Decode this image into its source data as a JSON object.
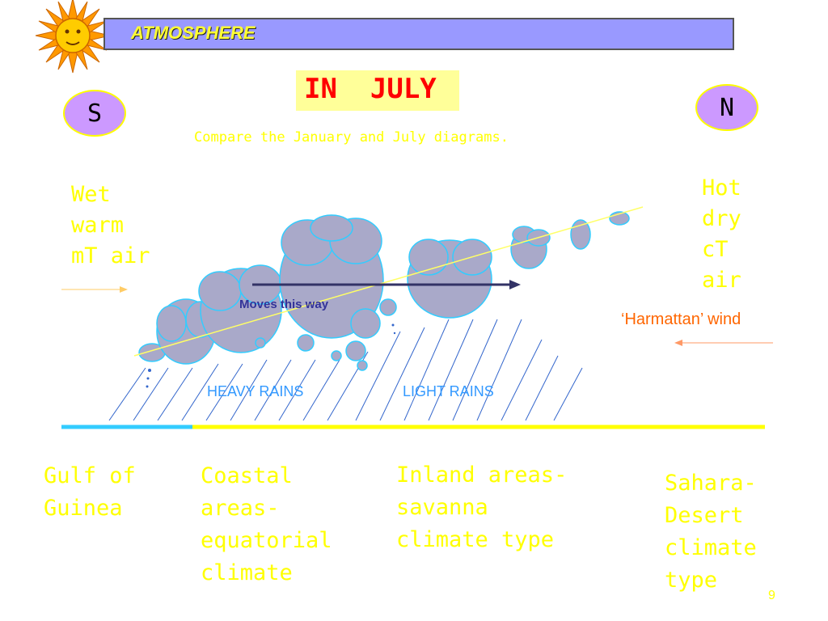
{
  "header": {
    "title": "ATMOSPHERE",
    "icon": "sun-icon",
    "bar_color": "#9999ff"
  },
  "slide": {
    "title": "IN  JULY",
    "subtitle": "Compare the January and July diagrams.",
    "page_number": "9"
  },
  "compass": {
    "south": "S",
    "north": "N"
  },
  "air_masses": {
    "south": [
      "Wet",
      "warm",
      "mT air"
    ],
    "north": [
      "Hot",
      "dry",
      "cT",
      "air"
    ],
    "north_wind": "‘Harmattan’ wind"
  },
  "diagram": {
    "moves_label": "Moves this way",
    "heavy_rains": "HEAVY RAINS",
    "light_rains": "LIGHT RAINS",
    "colors": {
      "cloud": "#a9a9c9",
      "cloud_outline": "#33ccff",
      "front": "#ffff66",
      "sea": "#33ccff",
      "land": "#ffff00",
      "rain": "#3366cc",
      "arrow": "#333366"
    }
  },
  "zones": {
    "gulf": [
      "Gulf of",
      "Guinea"
    ],
    "coastal": [
      "Coastal",
      "areas-",
      "equatorial",
      "climate"
    ],
    "inland": [
      "Inland areas-",
      "savanna",
      "climate type"
    ],
    "sahara": [
      "Sahara-",
      "Desert",
      "climate",
      "type"
    ]
  }
}
